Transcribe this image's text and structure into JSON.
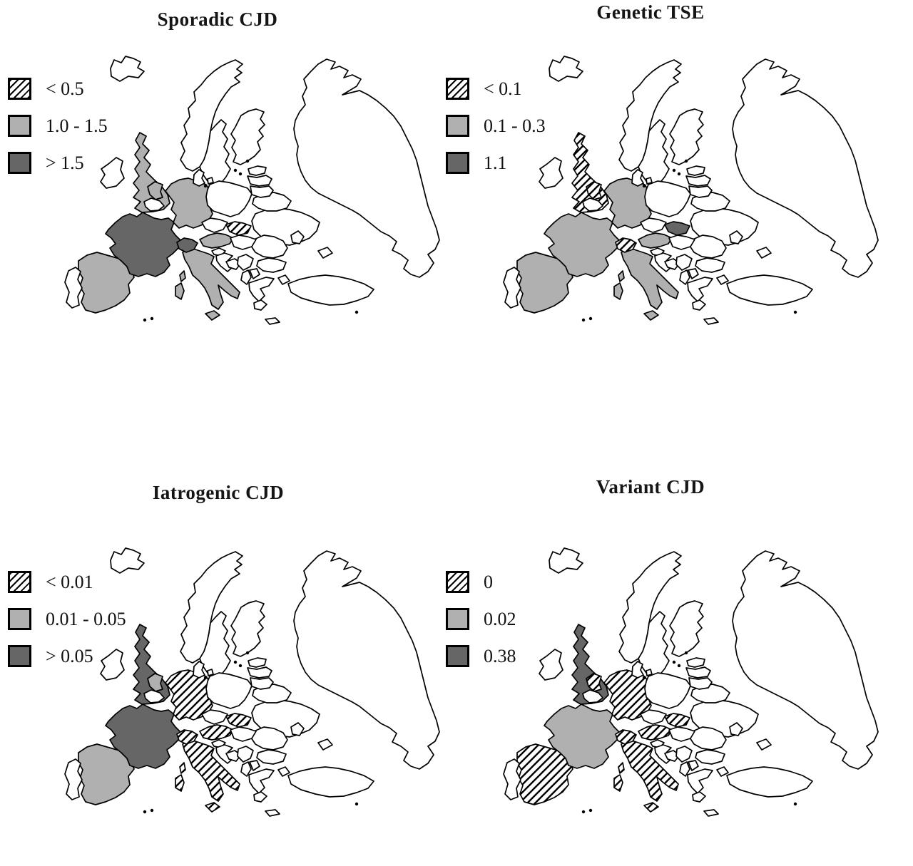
{
  "colors": {
    "light_gray": "#b0b0b0",
    "dark_gray": "#666666",
    "outline": "#000000",
    "paper": "#ffffff"
  },
  "panels": [
    {
      "key": "sporadic-cjd",
      "title": "Sporadic CJD",
      "legend": [
        {
          "swatch": "hatched",
          "label": "< 0.5"
        },
        {
          "swatch": "light",
          "label": "1.0 - 1.5"
        },
        {
          "swatch": "dark",
          "label": "> 1.5"
        }
      ],
      "countries": {
        "united-kingdom": "light",
        "spain": "light",
        "germany": "light",
        "netherlands": "light",
        "austria": "light",
        "italy": "light",
        "slovakia": "hatched",
        "france": "dark",
        "switzerland": "dark"
      }
    },
    {
      "key": "genetic-tse",
      "title": "Genetic TSE",
      "legend": [
        {
          "swatch": "hatched",
          "label": "< 0.1"
        },
        {
          "swatch": "light",
          "label": "0.1 - 0.3"
        },
        {
          "swatch": "dark",
          "label": "1.1"
        }
      ],
      "countries": {
        "united-kingdom": "hatched",
        "netherlands": "hatched",
        "switzerland": "hatched",
        "france": "light",
        "spain": "light",
        "germany": "light",
        "austria": "light",
        "italy": "light",
        "slovakia": "dark"
      }
    },
    {
      "key": "iatrogenic-cjd",
      "title": "Iatrogenic CJD",
      "legend": [
        {
          "swatch": "hatched",
          "label": "< 0.01"
        },
        {
          "swatch": "light",
          "label": "0.01 - 0.05"
        },
        {
          "swatch": "dark",
          "label": "> 0.05"
        }
      ],
      "countries": {
        "united-kingdom": "dark",
        "france": "dark",
        "spain": "light",
        "netherlands": "light",
        "germany": "hatched",
        "switzerland": "hatched",
        "austria": "hatched",
        "italy": "hatched",
        "slovakia": "hatched"
      }
    },
    {
      "key": "variant-cjd",
      "title": "Variant CJD",
      "legend": [
        {
          "swatch": "hatched",
          "label": "0"
        },
        {
          "swatch": "light",
          "label": "0.02"
        },
        {
          "swatch": "dark",
          "label": "0.38"
        }
      ],
      "countries": {
        "united-kingdom": "dark",
        "france": "light",
        "spain": "hatched",
        "germany": "hatched",
        "netherlands": "hatched",
        "switzerland": "hatched",
        "austria": "hatched",
        "italy": "hatched",
        "slovakia": "hatched"
      }
    }
  ]
}
